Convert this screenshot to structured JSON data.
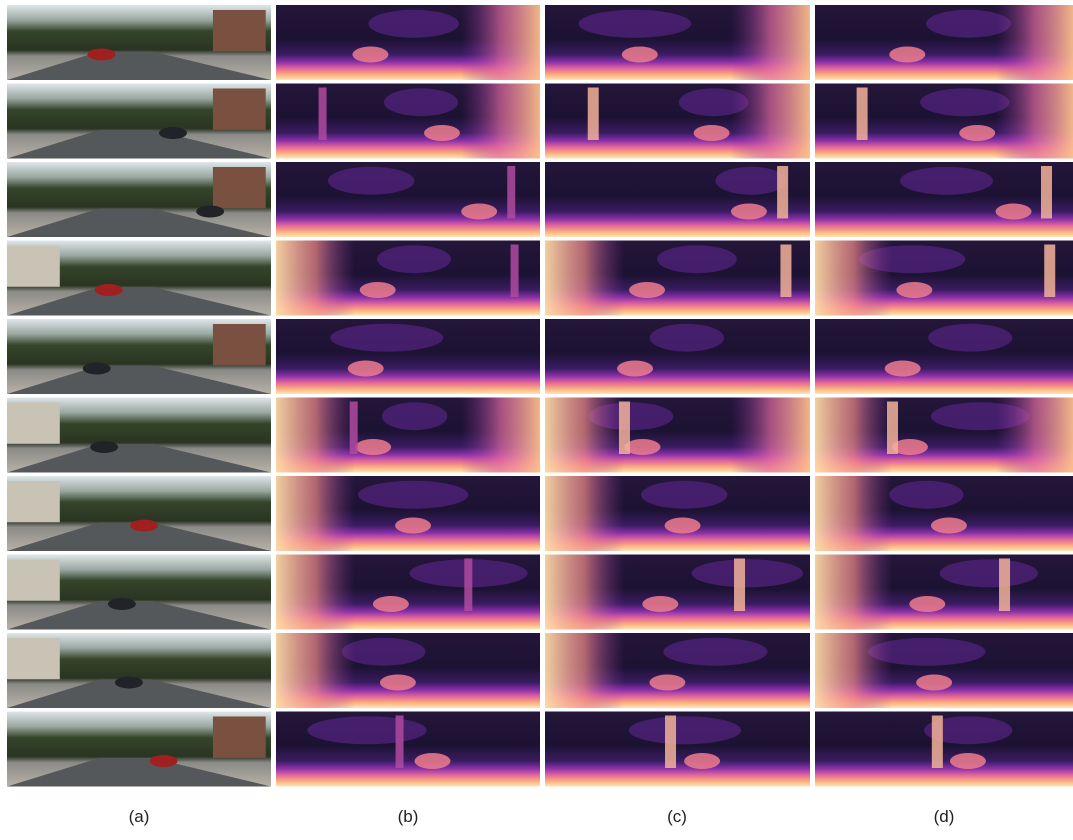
{
  "columns": [
    {
      "label": "(a)"
    },
    {
      "label": "(b)"
    },
    {
      "label": "(c)"
    },
    {
      "label": "(d)"
    }
  ]
}
